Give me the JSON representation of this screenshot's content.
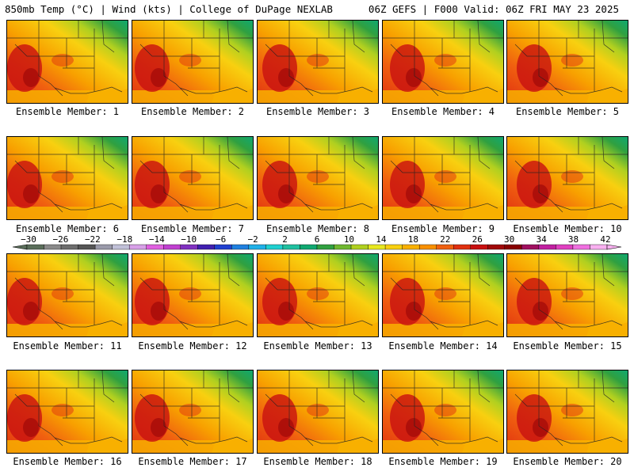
{
  "header": {
    "left": "850mb Temp (°C) | Wind (kts) | College of DuPage NEXLAB",
    "right": "06Z GEFS | F000 Valid: 06Z FRI MAY 23 2025"
  },
  "colorbar": {
    "labels": [
      "-30",
      "-26",
      "-22",
      "-18",
      "-14",
      "-10",
      "-6",
      "-2",
      "2",
      "6",
      "10",
      "14",
      "18",
      "22",
      "26",
      "30",
      "34",
      "38",
      "42"
    ],
    "colors": [
      "#5a6e5a",
      "#8a8a8a",
      "#6e6e6e",
      "#555555",
      "#9a9aaa",
      "#c0c0d8",
      "#d8a0e8",
      "#e060e0",
      "#c040d0",
      "#8030c0",
      "#4020b0",
      "#2040d0",
      "#2080e0",
      "#20b0e8",
      "#20d0d0",
      "#20c0a0",
      "#10a870",
      "#30a040",
      "#70b830",
      "#b0d020",
      "#e8e820",
      "#f8d010",
      "#f8b000",
      "#f89000",
      "#f06010",
      "#e03010",
      "#c81010",
      "#a00808",
      "#880000",
      "#a01060",
      "#c020a0",
      "#e040c0",
      "#f070e0",
      "#f8b0f0"
    ]
  },
  "members": [
    {
      "label": "Ensemble Member: 1"
    },
    {
      "label": "Ensemble Member: 2"
    },
    {
      "label": "Ensemble Member: 3"
    },
    {
      "label": "Ensemble Member: 4"
    },
    {
      "label": "Ensemble Member: 5"
    },
    {
      "label": "Ensemble Member: 6"
    },
    {
      "label": "Ensemble Member: 7"
    },
    {
      "label": "Ensemble Member: 8"
    },
    {
      "label": "Ensemble Member: 9"
    },
    {
      "label": "Ensemble Member: 10"
    },
    {
      "label": "Ensemble Member: 11"
    },
    {
      "label": "Ensemble Member: 12"
    },
    {
      "label": "Ensemble Member: 13"
    },
    {
      "label": "Ensemble Member: 14"
    },
    {
      "label": "Ensemble Member: 15"
    },
    {
      "label": "Ensemble Member: 16"
    },
    {
      "label": "Ensemble Member: 17"
    },
    {
      "label": "Ensemble Member: 18"
    },
    {
      "label": "Ensemble Member: 19"
    },
    {
      "label": "Ensemble Member: 20"
    }
  ]
}
